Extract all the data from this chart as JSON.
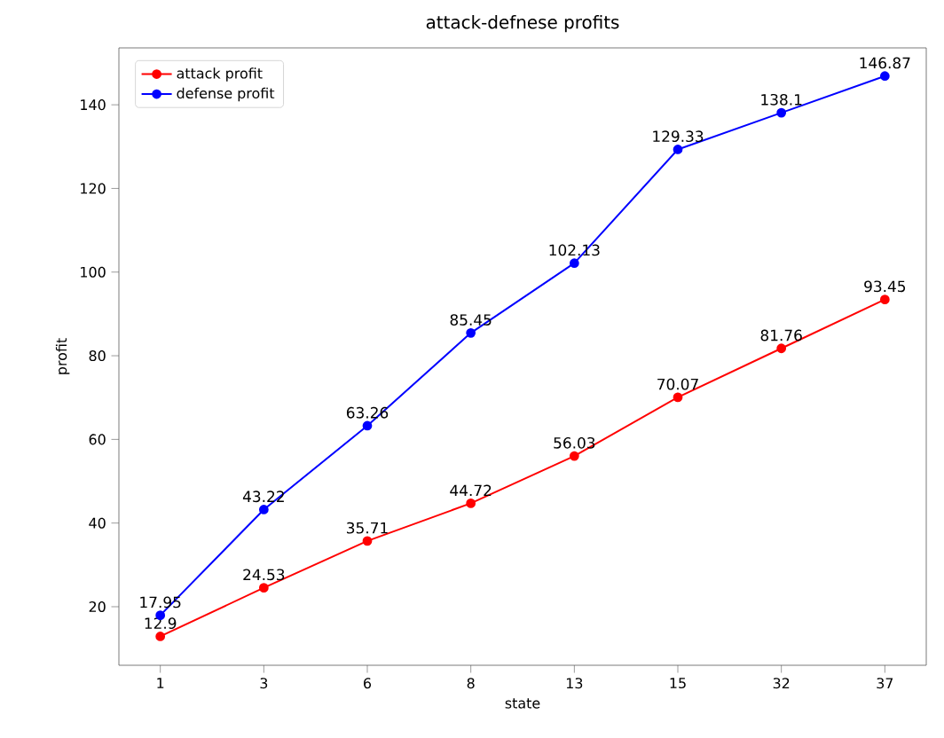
{
  "chart_data": {
    "type": "line",
    "title": "attack-defnese profits",
    "xlabel": "state",
    "ylabel": "profit",
    "categories": [
      "1",
      "3",
      "6",
      "8",
      "13",
      "15",
      "32",
      "37"
    ],
    "series": [
      {
        "name": "attack profit",
        "color": "#ff0000",
        "values": [
          12.9,
          24.53,
          35.71,
          44.72,
          56.03,
          70.07,
          81.76,
          93.45
        ]
      },
      {
        "name": "defense profit",
        "color": "#0000ff",
        "values": [
          17.95,
          43.22,
          63.26,
          85.45,
          102.13,
          129.33,
          138.1,
          146.87
        ]
      }
    ],
    "ylim": [
      6,
      153.6
    ],
    "yticks": [
      20,
      40,
      60,
      80,
      100,
      120,
      140
    ],
    "data_labels": true,
    "legend": "top left",
    "marker": "circle",
    "grid": false,
    "line_style": "solid"
  }
}
